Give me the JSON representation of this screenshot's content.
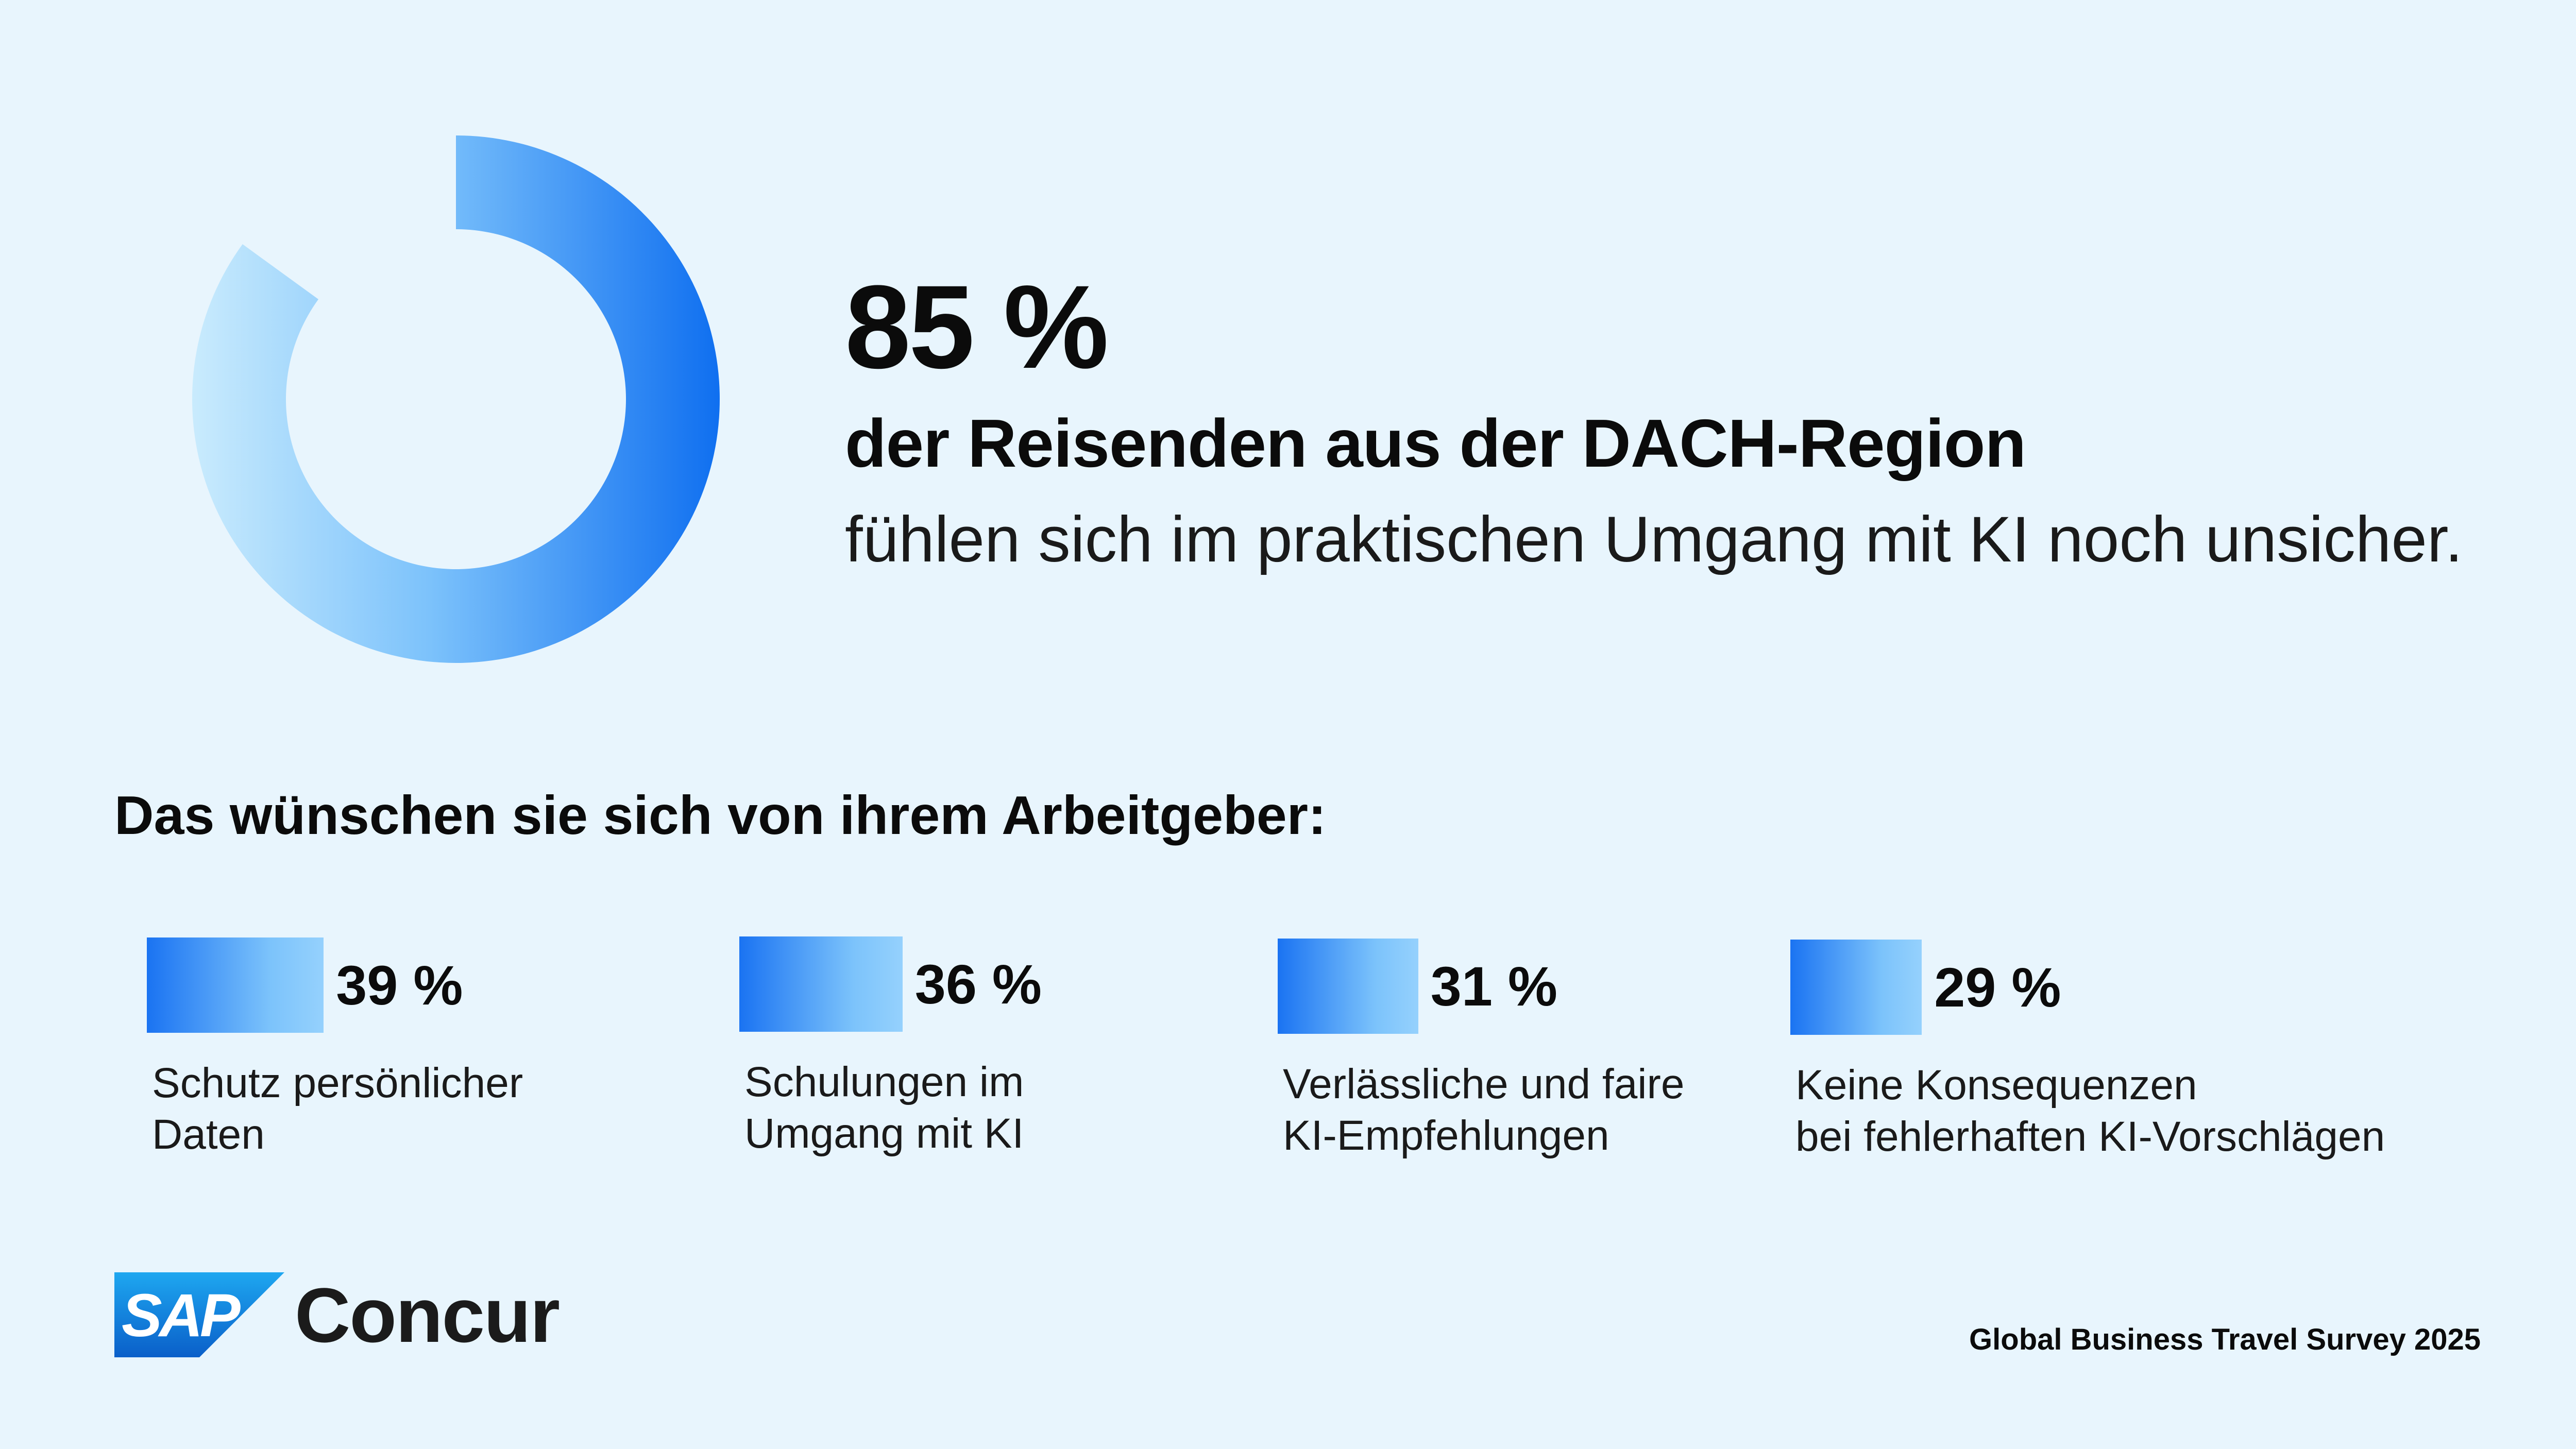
{
  "headline": {
    "percent_label": "85 %",
    "title": "der Reisenden aus der DACH-Region",
    "subtitle": "fühlen sich im praktischen Umgang mit KI noch unsicher."
  },
  "section_title": "Das wünschen sie sich von ihrem Arbeitgeber:",
  "colors": {
    "background": "#e8f5fd",
    "accent_dark": "#1a73f2",
    "accent_light": "#95d1fd",
    "text": "#0b0b0b"
  },
  "brand": {
    "logo_text": "SAP",
    "product": "Concur"
  },
  "footer": "Global Business Travel Survey 2025",
  "chart_data": [
    {
      "type": "pie",
      "values": [
        85,
        15
      ],
      "unit": "%"
    },
    {
      "type": "bar",
      "categories": [
        "Schutz persönlicher Daten",
        "Schulungen im Umgang mit KI",
        "Verlässliche und faire KI-Empfehlungen",
        "Keine Konsequenzen bei fehlerhaften KI-Vorschlägen"
      ],
      "label_lines": [
        [
          "Schutz persönlicher",
          "Daten"
        ],
        [
          "Schulungen im",
          "Umgang mit KI"
        ],
        [
          "Verlässliche und faire",
          "KI-Empfehlungen"
        ],
        [
          "Keine Konsequenzen",
          "bei fehlerhaften KI-Vorschlägen"
        ]
      ],
      "values": [
        39,
        36,
        31,
        29
      ],
      "value_labels": [
        "39 %",
        "36 %",
        "31 %",
        "29 %"
      ],
      "unit": "%"
    }
  ]
}
